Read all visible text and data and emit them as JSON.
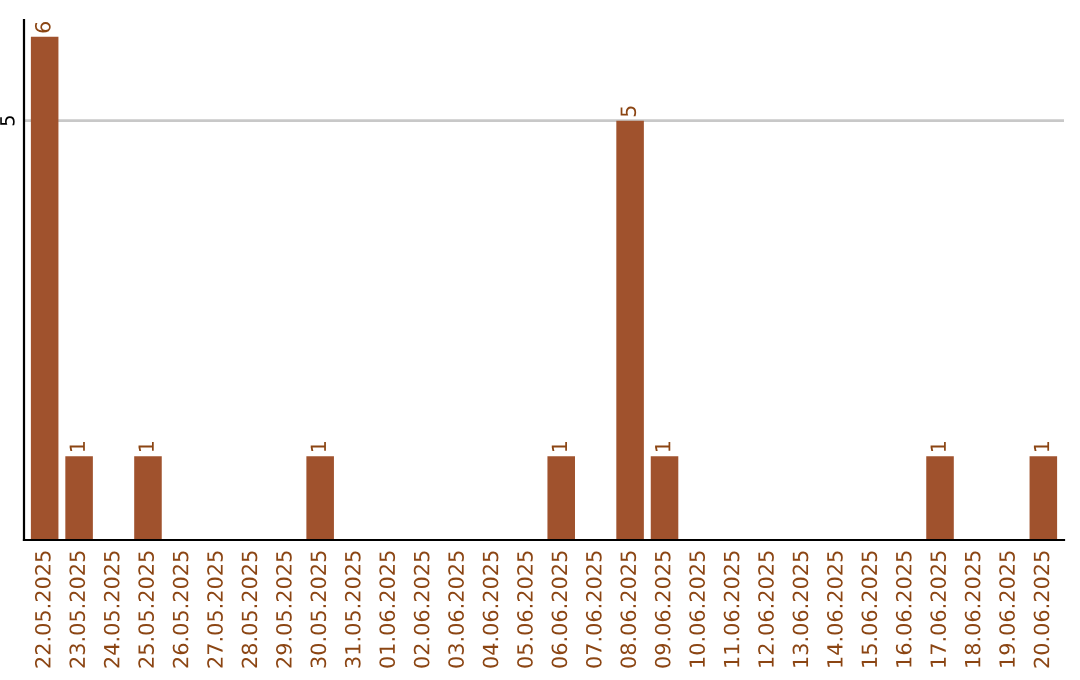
{
  "chart_data": {
    "type": "bar",
    "categories": [
      "22.05.2025",
      "23.05.2025",
      "24.05.2025",
      "25.05.2025",
      "26.05.2025",
      "27.05.2025",
      "28.05.2025",
      "29.05.2025",
      "30.05.2025",
      "31.05.2025",
      "01.06.2025",
      "02.06.2025",
      "03.06.2025",
      "04.06.2025",
      "05.06.2025",
      "06.06.2025",
      "07.06.2025",
      "08.06.2025",
      "09.06.2025",
      "10.06.2025",
      "11.06.2025",
      "12.06.2025",
      "13.06.2025",
      "14.06.2025",
      "15.06.2025",
      "16.06.2025",
      "17.06.2025",
      "18.06.2025",
      "19.06.2025",
      "20.06.2025"
    ],
    "value_labels": [
      "6",
      "1",
      null,
      "1",
      null,
      null,
      null,
      null,
      "1",
      null,
      null,
      null,
      null,
      null,
      null,
      "1",
      null,
      "5",
      "1",
      null,
      null,
      null,
      null,
      null,
      null,
      null,
      "1",
      null,
      null,
      "1"
    ],
    "values": [
      6,
      1,
      0,
      1,
      0,
      0,
      0,
      0,
      1,
      0,
      0,
      0,
      0,
      0,
      0,
      1,
      0,
      5,
      1,
      0,
      0,
      0,
      0,
      0,
      0,
      0,
      1,
      0,
      0,
      1
    ],
    "color": "#a0522d",
    "ylim": [
      0,
      6.2
    ],
    "yticks": [
      5
    ],
    "grid": "y"
  }
}
